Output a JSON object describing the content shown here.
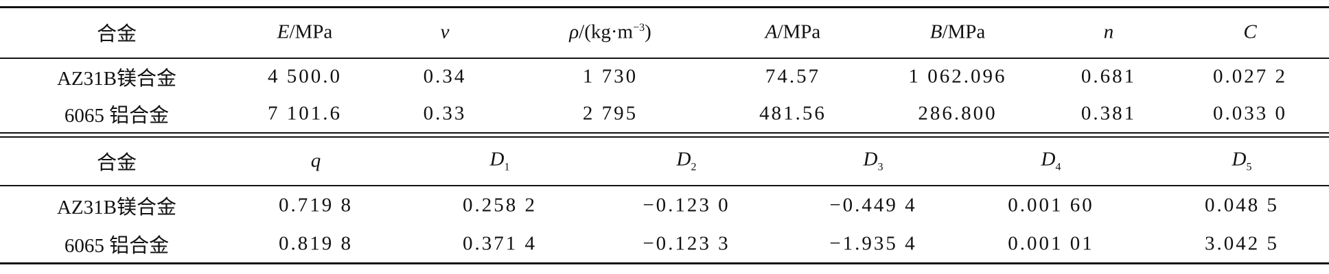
{
  "table1": {
    "header": [
      "合金",
      {
        "italic": "E",
        "text": "/MPa"
      },
      {
        "italic": "ν"
      },
      {
        "italic": "ρ",
        "text": "/(kg·m",
        "sup": "−3",
        "end": ")"
      },
      {
        "italic": "A",
        "text": "/MPa"
      },
      {
        "italic": "B",
        "text": "/MPa"
      },
      {
        "italic": "n"
      },
      {
        "italic": "C"
      }
    ],
    "rows": [
      [
        "AZ31B镁合金",
        "4 500.0",
        "0.34",
        "1 730",
        "74.57",
        "1 062.096",
        "0.681",
        "0.027 2"
      ],
      [
        "6065 铝合金",
        "7 101.6",
        "0.33",
        "2 795",
        "481.56",
        "286.800",
        "0.381",
        "0.033 0"
      ]
    ]
  },
  "table2": {
    "header": [
      "合金",
      {
        "italic": "q"
      },
      {
        "italic": "D",
        "sub": "1"
      },
      {
        "italic": "D",
        "sub": "2"
      },
      {
        "italic": "D",
        "sub": "3"
      },
      {
        "italic": "D",
        "sub": "4"
      },
      {
        "italic": "D",
        "sub": "5"
      }
    ],
    "rows": [
      [
        "AZ31B镁合金",
        "0.719 8",
        "0.258 2",
        "−0.123 0",
        "−0.449 4",
        "0.001 60",
        "0.048 5"
      ],
      [
        "6065 铝合金",
        "0.819 8",
        "0.371 4",
        "−0.123 3",
        "−1.935 4",
        "0.001 01",
        "3.042 5"
      ]
    ]
  }
}
